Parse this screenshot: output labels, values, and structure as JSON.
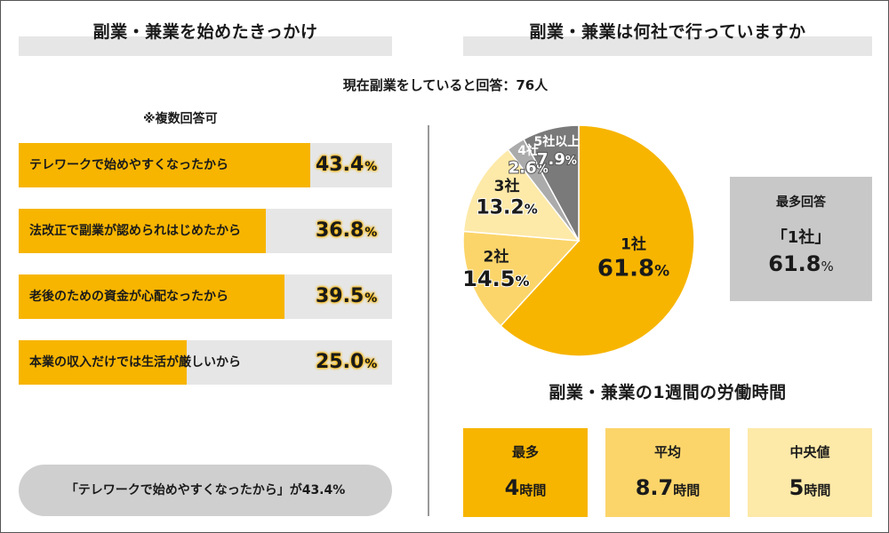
{
  "left_title": "副業・兼業を始めたきっかけ",
  "right_title": "副業・兼業は何社で行っていますか",
  "respondents": "現在副業をしていると回答：76人",
  "note": "※複数回答可",
  "summary": "「テレワークで始めやすくなったから」が43.4%",
  "chart_data": [
    {
      "type": "bar",
      "title": "副業・兼業を始めたきっかけ",
      "categories": [
        "テレワークで始めやすくなったから",
        "法改正で副業が認められはじめたから",
        "老後のための資金が心配なったから",
        "本業の収入だけでは生活が厳しいから"
      ],
      "values": [
        43.4,
        36.8,
        39.5,
        25.0
      ],
      "value_labels": [
        "43.4",
        "36.8",
        "39.5",
        "25.0"
      ],
      "unit": "%",
      "ylim": [
        0,
        100
      ],
      "bar_color": "#f7b500",
      "track_color": "#e6e6e6"
    },
    {
      "type": "pie",
      "title": "副業・兼業は何社で行っていますか",
      "categories": [
        "1社",
        "2社",
        "3社",
        "4社",
        "5社以上"
      ],
      "values": [
        61.8,
        14.5,
        13.2,
        2.6,
        7.9
      ],
      "value_labels": [
        "61.8",
        "14.5",
        "13.2",
        "2.6",
        "7.9"
      ],
      "unit": "%",
      "colors": [
        "#f7b500",
        "#fbd56a",
        "#fde9a8",
        "#ababab",
        "#7a7a7a"
      ]
    },
    {
      "type": "table",
      "title": "副業・兼業の1週間の労働時間",
      "rows": [
        {
          "label": "最多",
          "value": "4",
          "unit": "時間",
          "color": "#f7b500"
        },
        {
          "label": "平均",
          "value": "8.7",
          "unit": "時間",
          "color": "#fbd56a"
        },
        {
          "label": "中央値",
          "value": "5",
          "unit": "時間",
          "color": "#fde9a8"
        }
      ]
    }
  ],
  "mode_box": {
    "heading": "最多回答",
    "value": "「1社」",
    "percent": "61.8",
    "unit": "%"
  }
}
